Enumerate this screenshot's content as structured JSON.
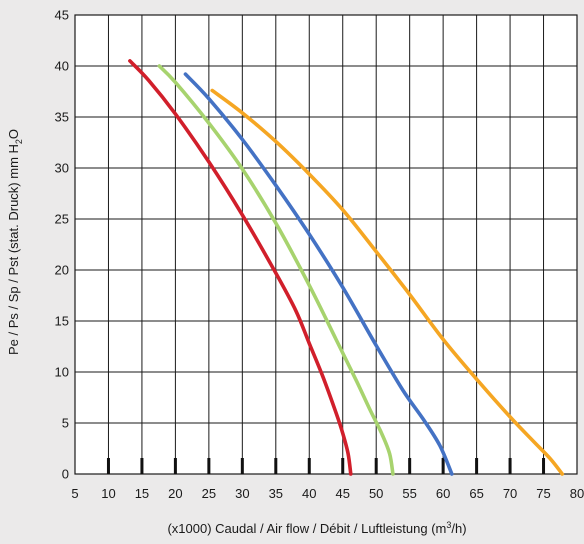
{
  "chart_data": {
    "type": "line",
    "xlabel": "(x1000) Caudal / Air flow / Débit / Luftleistung (m³/h)",
    "xlabel_parts": {
      "before": "(x1000) Caudal / Air flow / Débit / Luftleistung (m",
      "sup": "3",
      "after": "/h)"
    },
    "ylabel": "Pe / Ps / Sp / Pst (stat. Druck) mm H₂O",
    "ylabel_parts": {
      "before": "Pe / Ps / Sp / Pst (stat. Druck) mm H",
      "sub": "2",
      "after": "O"
    },
    "xlim": [
      5,
      80
    ],
    "ylim": [
      0,
      45
    ],
    "x_ticks": [
      5,
      10,
      15,
      20,
      25,
      30,
      35,
      40,
      45,
      50,
      55,
      60,
      65,
      70,
      75,
      80
    ],
    "y_ticks": [
      0,
      5,
      10,
      15,
      20,
      25,
      30,
      35,
      40,
      45
    ],
    "grid": true,
    "series": [
      {
        "color": "#d11f2b",
        "points": [
          [
            13.2,
            40.5
          ],
          [
            16,
            38.6
          ],
          [
            20,
            35.3
          ],
          [
            25,
            30.6
          ],
          [
            30,
            25.4
          ],
          [
            35,
            19.7
          ],
          [
            38,
            16.0
          ],
          [
            40,
            12.8
          ],
          [
            42,
            9.6
          ],
          [
            44,
            6.0
          ],
          [
            45,
            4.0
          ],
          [
            45.8,
            2.0
          ],
          [
            46.2,
            0
          ]
        ]
      },
      {
        "color": "#a7d36e",
        "points": [
          [
            17.6,
            40.0
          ],
          [
            20,
            38.4
          ],
          [
            25,
            34.4
          ],
          [
            30,
            29.9
          ],
          [
            35,
            24.6
          ],
          [
            40,
            18.5
          ],
          [
            44,
            13.2
          ],
          [
            47,
            9.2
          ],
          [
            49,
            6.4
          ],
          [
            50.8,
            4.0
          ],
          [
            52,
            2.0
          ],
          [
            52.5,
            0
          ]
        ]
      },
      {
        "color": "#4472c4",
        "points": [
          [
            21.5,
            39.2
          ],
          [
            25,
            36.8
          ],
          [
            30,
            32.8
          ],
          [
            35,
            28.3
          ],
          [
            40,
            23.5
          ],
          [
            45,
            18.3
          ],
          [
            50,
            12.6
          ],
          [
            54,
            8.2
          ],
          [
            57,
            5.4
          ],
          [
            59.5,
            2.8
          ],
          [
            61.3,
            0
          ]
        ]
      },
      {
        "color": "#f5a623",
        "points": [
          [
            25.5,
            37.6
          ],
          [
            30,
            35.4
          ],
          [
            35,
            32.6
          ],
          [
            40,
            29.4
          ],
          [
            45,
            25.9
          ],
          [
            50,
            21.8
          ],
          [
            55,
            17.6
          ],
          [
            60,
            13.2
          ],
          [
            65,
            9.3
          ],
          [
            70,
            5.6
          ],
          [
            73.5,
            3.2
          ],
          [
            76,
            1.5
          ],
          [
            77.8,
            0
          ]
        ]
      }
    ]
  }
}
